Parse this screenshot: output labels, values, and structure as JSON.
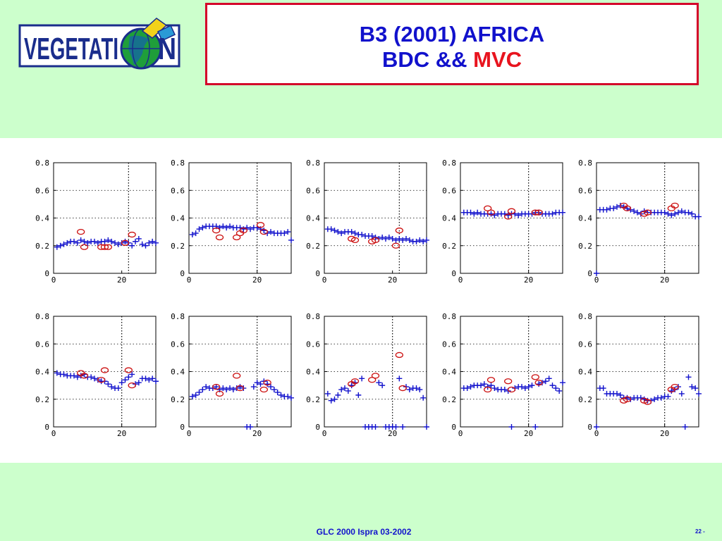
{
  "logo": {
    "text": "VEGETATION",
    "text_left": "VEGETATI",
    "text_right": "N",
    "colors": {
      "text": "#1a2d8c",
      "globe": "#1a8c2e",
      "satellite": "#f2d21a"
    }
  },
  "title": {
    "line1": "B3 (2001) AFRICA",
    "line2_prefix": "BDC && ",
    "line2_highlight": "MVC"
  },
  "footer": {
    "left": "GLC 2000 Ispra 03-2002",
    "right": "22 -"
  },
  "colors": {
    "bdc": "#1111cc",
    "mvc": "#cc1111",
    "title_border": "#d40029",
    "background": "#ccffcc"
  },
  "chart_data": [
    {
      "type": "scatter",
      "xlim": [
        0,
        30
      ],
      "ylim": [
        0,
        0.8
      ],
      "xticks": [
        0,
        20
      ],
      "yticks": [
        0,
        0.2,
        0.4,
        0.6,
        0.8
      ],
      "ytick_labels": [
        "0",
        "0.2",
        "0.4",
        "0.6",
        "0.8"
      ],
      "grid": "dotted",
      "vline": 22,
      "series": [
        {
          "marker": "plus",
          "x": [
            1,
            2,
            3,
            4,
            5,
            6,
            7,
            8,
            9,
            10,
            11,
            12,
            13,
            14,
            15,
            16,
            17,
            18,
            19,
            20,
            21,
            22,
            23,
            24,
            25,
            26,
            27,
            28,
            29,
            30
          ],
          "y": [
            0.19,
            0.2,
            0.21,
            0.22,
            0.23,
            0.23,
            0.22,
            0.24,
            0.23,
            0.22,
            0.23,
            0.23,
            0.22,
            0.23,
            0.23,
            0.24,
            0.23,
            0.22,
            0.21,
            0.22,
            0.23,
            0.22,
            0.2,
            0.23,
            0.25,
            0.21,
            0.2,
            0.22,
            0.23,
            0.22
          ]
        },
        {
          "marker": "circle",
          "x": [
            8,
            9,
            14,
            15,
            16,
            21,
            23
          ],
          "y": [
            0.3,
            0.19,
            0.19,
            0.19,
            0.19,
            0.22,
            0.28
          ]
        }
      ]
    },
    {
      "type": "scatter",
      "xlim": [
        0,
        30
      ],
      "ylim": [
        0,
        0.8
      ],
      "xticks": [
        0,
        20
      ],
      "yticks": [
        0,
        0.2,
        0.4,
        0.6,
        0.8
      ],
      "ytick_labels": [
        "0",
        "0.2",
        "0.4",
        "0.6",
        "0.8"
      ],
      "grid": "dotted",
      "vline": 20,
      "series": [
        {
          "marker": "plus",
          "x": [
            1,
            2,
            3,
            4,
            5,
            6,
            7,
            8,
            9,
            10,
            11,
            12,
            13,
            14,
            15,
            16,
            17,
            18,
            19,
            20,
            21,
            22,
            23,
            24,
            25,
            26,
            27,
            28,
            29,
            30
          ],
          "y": [
            0.28,
            0.29,
            0.32,
            0.33,
            0.34,
            0.34,
            0.34,
            0.34,
            0.33,
            0.34,
            0.33,
            0.34,
            0.33,
            0.33,
            0.33,
            0.32,
            0.33,
            0.32,
            0.33,
            0.33,
            0.32,
            0.31,
            0.29,
            0.3,
            0.29,
            0.29,
            0.29,
            0.29,
            0.3,
            0.24
          ]
        },
        {
          "marker": "circle",
          "x": [
            8,
            9,
            14,
            15,
            16,
            21,
            22
          ],
          "y": [
            0.31,
            0.26,
            0.26,
            0.29,
            0.31,
            0.35,
            0.3
          ]
        }
      ]
    },
    {
      "type": "scatter",
      "xlim": [
        0,
        30
      ],
      "ylim": [
        0,
        0.8
      ],
      "xticks": [
        0,
        20
      ],
      "yticks": [
        0,
        0.2,
        0.4,
        0.6,
        0.8
      ],
      "ytick_labels": [
        "0",
        "0.2",
        "0.4",
        "0.6",
        "0.8"
      ],
      "grid": "dotted",
      "vline": 22,
      "series": [
        {
          "marker": "plus",
          "x": [
            1,
            2,
            3,
            4,
            5,
            6,
            7,
            8,
            9,
            10,
            11,
            12,
            13,
            14,
            15,
            16,
            17,
            18,
            19,
            20,
            21,
            22,
            23,
            24,
            25,
            26,
            27,
            28,
            29,
            30
          ],
          "y": [
            0.32,
            0.32,
            0.31,
            0.3,
            0.29,
            0.3,
            0.3,
            0.3,
            0.29,
            0.28,
            0.28,
            0.27,
            0.27,
            0.27,
            0.26,
            0.25,
            0.26,
            0.25,
            0.26,
            0.25,
            0.24,
            0.25,
            0.24,
            0.25,
            0.24,
            0.23,
            0.23,
            0.24,
            0.23,
            0.24
          ]
        },
        {
          "marker": "circle",
          "x": [
            8,
            9,
            14,
            15,
            21,
            22
          ],
          "y": [
            0.25,
            0.24,
            0.23,
            0.24,
            0.2,
            0.31
          ]
        }
      ]
    },
    {
      "type": "scatter",
      "xlim": [
        0,
        30
      ],
      "ylim": [
        0,
        0.8
      ],
      "xticks": [
        0,
        20
      ],
      "yticks": [
        0,
        0.2,
        0.4,
        0.6,
        0.8
      ],
      "ytick_labels": [
        "0",
        "0.2",
        "0.4",
        "0.6",
        "0.8"
      ],
      "grid": "dotted",
      "vline": 20,
      "series": [
        {
          "marker": "plus",
          "x": [
            1,
            2,
            3,
            4,
            5,
            6,
            7,
            8,
            9,
            10,
            11,
            12,
            13,
            14,
            15,
            16,
            17,
            18,
            19,
            20,
            21,
            22,
            23,
            24,
            25,
            26,
            27,
            28,
            29,
            30
          ],
          "y": [
            0.44,
            0.44,
            0.44,
            0.43,
            0.44,
            0.43,
            0.43,
            0.43,
            0.43,
            0.42,
            0.43,
            0.43,
            0.43,
            0.42,
            0.43,
            0.43,
            0.42,
            0.43,
            0.43,
            0.43,
            0.43,
            0.44,
            0.44,
            0.43,
            0.43,
            0.43,
            0.43,
            0.44,
            0.44,
            0.44
          ]
        },
        {
          "marker": "circle",
          "x": [
            8,
            9,
            14,
            15,
            22,
            23
          ],
          "y": [
            0.47,
            0.44,
            0.41,
            0.45,
            0.44,
            0.44
          ]
        }
      ]
    },
    {
      "type": "scatter",
      "xlim": [
        0,
        30
      ],
      "ylim": [
        0,
        0.8
      ],
      "xticks": [
        0,
        20
      ],
      "yticks": [
        0,
        0.2,
        0.4,
        0.6,
        0.8
      ],
      "ytick_labels": [
        "0",
        "0.2",
        "0.4",
        "0.6",
        "0.8"
      ],
      "grid": "dotted",
      "vline": 20,
      "series": [
        {
          "marker": "plus",
          "x": [
            0,
            1,
            2,
            3,
            4,
            5,
            6,
            7,
            8,
            9,
            10,
            11,
            12,
            13,
            14,
            15,
            16,
            17,
            18,
            19,
            20,
            21,
            22,
            23,
            24,
            25,
            26,
            27,
            28,
            29,
            30
          ],
          "y": [
            0.0,
            0.46,
            0.46,
            0.46,
            0.47,
            0.47,
            0.48,
            0.49,
            0.48,
            0.47,
            0.46,
            0.45,
            0.44,
            0.43,
            0.45,
            0.44,
            0.44,
            0.44,
            0.44,
            0.44,
            0.44,
            0.43,
            0.42,
            0.43,
            0.44,
            0.45,
            0.44,
            0.44,
            0.43,
            0.41,
            0.41
          ]
        },
        {
          "marker": "circle",
          "x": [
            8,
            9,
            14,
            15,
            22,
            23
          ],
          "y": [
            0.49,
            0.47,
            0.43,
            0.44,
            0.47,
            0.49
          ]
        }
      ]
    },
    {
      "type": "scatter",
      "xlim": [
        0,
        30
      ],
      "ylim": [
        0,
        0.8
      ],
      "xticks": [
        0,
        20
      ],
      "yticks": [
        0,
        0.2,
        0.4,
        0.6,
        0.8
      ],
      "ytick_labels": [
        "0",
        "0.2",
        "0.4",
        "0.6",
        "0.8"
      ],
      "grid": "dotted",
      "vline": 20,
      "series": [
        {
          "marker": "plus",
          "x": [
            1,
            2,
            3,
            4,
            5,
            6,
            7,
            8,
            9,
            10,
            11,
            12,
            13,
            14,
            15,
            16,
            17,
            18,
            19,
            20,
            21,
            22,
            23,
            24,
            25,
            26,
            27,
            28,
            29,
            30
          ],
          "y": [
            0.39,
            0.38,
            0.38,
            0.37,
            0.37,
            0.37,
            0.36,
            0.37,
            0.38,
            0.36,
            0.36,
            0.35,
            0.34,
            0.33,
            0.33,
            0.31,
            0.29,
            0.28,
            0.28,
            0.32,
            0.34,
            0.36,
            0.38,
            0.31,
            0.32,
            0.35,
            0.35,
            0.34,
            0.35,
            0.33
          ]
        },
        {
          "marker": "circle",
          "x": [
            8,
            9,
            14,
            15,
            22,
            23
          ],
          "y": [
            0.39,
            0.37,
            0.34,
            0.41,
            0.41,
            0.3
          ]
        }
      ]
    },
    {
      "type": "scatter",
      "xlim": [
        0,
        30
      ],
      "ylim": [
        0,
        0.8
      ],
      "xticks": [
        0,
        20
      ],
      "yticks": [
        0,
        0.2,
        0.4,
        0.6,
        0.8
      ],
      "ytick_labels": [
        "0",
        "0.2",
        "0.4",
        "0.6",
        "0.8"
      ],
      "grid": "dotted",
      "vline": 20,
      "series": [
        {
          "marker": "plus",
          "x": [
            1,
            2,
            3,
            4,
            5,
            6,
            7,
            8,
            9,
            10,
            11,
            12,
            13,
            14,
            15,
            16,
            17,
            18,
            19,
            20,
            21,
            22,
            23,
            24,
            25,
            26,
            27,
            28,
            29,
            30
          ],
          "y": [
            0.22,
            0.23,
            0.25,
            0.27,
            0.29,
            0.28,
            0.28,
            0.29,
            0.27,
            0.28,
            0.27,
            0.28,
            0.27,
            0.28,
            0.29,
            0.28,
            0.0,
            0.0,
            0.29,
            0.32,
            0.31,
            0.33,
            0.31,
            0.29,
            0.27,
            0.25,
            0.23,
            0.22,
            0.22,
            0.21
          ]
        },
        {
          "marker": "circle",
          "x": [
            8,
            9,
            14,
            15,
            22,
            23
          ],
          "y": [
            0.29,
            0.24,
            0.37,
            0.28,
            0.27,
            0.32
          ]
        }
      ]
    },
    {
      "type": "scatter",
      "xlim": [
        0,
        30
      ],
      "ylim": [
        0,
        0.8
      ],
      "xticks": [
        0,
        20
      ],
      "yticks": [
        0,
        0.2,
        0.4,
        0.6,
        0.8
      ],
      "ytick_labels": [
        "0",
        "0.2",
        "0.4",
        "0.6",
        "0.8"
      ],
      "grid": "dotted",
      "vline": 20,
      "series": [
        {
          "marker": "plus",
          "x": [
            1,
            2,
            3,
            4,
            5,
            6,
            7,
            8,
            9,
            10,
            11,
            12,
            13,
            14,
            15,
            16,
            17,
            18,
            19,
            20,
            21,
            22,
            23,
            24,
            25,
            26,
            27,
            28,
            29,
            30
          ],
          "y": [
            0.24,
            0.19,
            0.2,
            0.23,
            0.27,
            0.28,
            0.26,
            0.3,
            0.32,
            0.23,
            0.35,
            0.0,
            0.0,
            0.0,
            0.0,
            0.32,
            0.3,
            0.0,
            0.0,
            0.0,
            0.0,
            0.35,
            0.0,
            0.29,
            0.27,
            0.28,
            0.28,
            0.27,
            0.21,
            0.0
          ]
        },
        {
          "marker": "circle",
          "x": [
            8,
            9,
            14,
            15,
            22,
            23
          ],
          "y": [
            0.31,
            0.33,
            0.34,
            0.37,
            0.52,
            0.28
          ]
        }
      ]
    },
    {
      "type": "scatter",
      "xlim": [
        0,
        30
      ],
      "ylim": [
        0,
        0.8
      ],
      "xticks": [
        0,
        20
      ],
      "yticks": [
        0,
        0.2,
        0.4,
        0.6,
        0.8
      ],
      "ytick_labels": [
        "0",
        "0.2",
        "0.4",
        "0.6",
        "0.8"
      ],
      "grid": "dotted",
      "vline": 20,
      "series": [
        {
          "marker": "plus",
          "x": [
            1,
            2,
            3,
            4,
            5,
            6,
            7,
            8,
            9,
            10,
            11,
            12,
            13,
            14,
            15,
            16,
            17,
            18,
            19,
            20,
            21,
            22,
            23,
            24,
            25,
            26,
            27,
            28,
            29,
            30
          ],
          "y": [
            0.28,
            0.28,
            0.29,
            0.3,
            0.3,
            0.3,
            0.31,
            0.29,
            0.3,
            0.28,
            0.27,
            0.27,
            0.27,
            0.26,
            0.0,
            0.28,
            0.29,
            0.29,
            0.28,
            0.29,
            0.3,
            0.0,
            0.31,
            0.32,
            0.33,
            0.35,
            0.3,
            0.28,
            0.26,
            0.32
          ]
        },
        {
          "marker": "circle",
          "x": [
            8,
            9,
            14,
            15,
            22,
            23
          ],
          "y": [
            0.27,
            0.34,
            0.33,
            0.27,
            0.36,
            0.32
          ]
        }
      ]
    },
    {
      "type": "scatter",
      "xlim": [
        0,
        30
      ],
      "ylim": [
        0,
        0.8
      ],
      "xticks": [
        0,
        20
      ],
      "yticks": [
        0,
        0.2,
        0.4,
        0.6,
        0.8
      ],
      "ytick_labels": [
        "0",
        "0.2",
        "0.4",
        "0.6",
        "0.8"
      ],
      "grid": "dotted",
      "vline": 20,
      "series": [
        {
          "marker": "plus",
          "x": [
            0,
            1,
            2,
            3,
            4,
            5,
            6,
            7,
            8,
            9,
            10,
            11,
            12,
            13,
            14,
            15,
            16,
            17,
            18,
            19,
            20,
            21,
            22,
            23,
            24,
            25,
            26,
            27,
            28,
            29,
            30
          ],
          "y": [
            0.0,
            0.28,
            0.28,
            0.24,
            0.24,
            0.24,
            0.24,
            0.23,
            0.21,
            0.21,
            0.2,
            0.21,
            0.21,
            0.21,
            0.2,
            0.19,
            0.19,
            0.2,
            0.21,
            0.21,
            0.22,
            0.22,
            0.26,
            0.27,
            0.29,
            0.24,
            0.0,
            0.36,
            0.29,
            0.28,
            0.24
          ]
        },
        {
          "marker": "circle",
          "x": [
            8,
            9,
            14,
            15,
            22,
            23
          ],
          "y": [
            0.19,
            0.2,
            0.19,
            0.18,
            0.27,
            0.29
          ]
        }
      ]
    }
  ]
}
